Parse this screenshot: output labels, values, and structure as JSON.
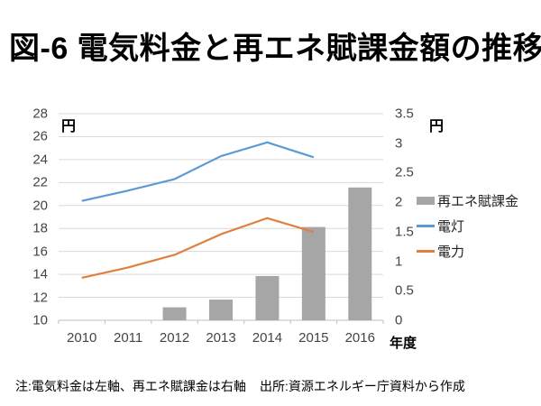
{
  "title": "図-6 電気料金と再エネ賦課金額の推移",
  "chart_data": {
    "type": "combo-bar-line",
    "categories": [
      "2010",
      "2011",
      "2012",
      "2013",
      "2014",
      "2015",
      "2016"
    ],
    "series": [
      {
        "name": "再エネ賦課金",
        "type": "bar",
        "axis": "right",
        "color": "#a6a6a6",
        "values": [
          null,
          null,
          0.22,
          0.35,
          0.75,
          1.58,
          2.25
        ]
      },
      {
        "name": "電灯",
        "type": "line",
        "axis": "left",
        "color": "#5b9bd5",
        "values": [
          20.4,
          21.3,
          22.3,
          24.3,
          25.5,
          24.2,
          null
        ]
      },
      {
        "name": "電力",
        "type": "line",
        "axis": "left",
        "color": "#e07f3e",
        "values": [
          13.7,
          14.6,
          15.7,
          17.5,
          18.9,
          17.7,
          null
        ]
      }
    ],
    "left_axis": {
      "label": "円",
      "min": 10,
      "max": 28,
      "step": 2,
      "ticks": [
        "28",
        "26",
        "24",
        "22",
        "20",
        "18",
        "16",
        "14",
        "12",
        "10"
      ]
    },
    "right_axis": {
      "label": "円",
      "min": 0,
      "max": 3.5,
      "step": 0.5,
      "ticks": [
        "3.5",
        "3",
        "2.5",
        "2",
        "1.5",
        "1",
        "0.5",
        "0"
      ]
    },
    "x_axis": {
      "label": "年度"
    },
    "legend_position": "right",
    "grid": "horizontal",
    "colors": {
      "gridline": "#d9d9d9",
      "axis_line": "#bfbfbf",
      "tick_text": "#444444"
    }
  },
  "notes": {
    "axis_note": "注:電気料金は左軸、再エネ賦課金は右軸",
    "source": "出所:資源エネルギー庁資料から作成"
  }
}
